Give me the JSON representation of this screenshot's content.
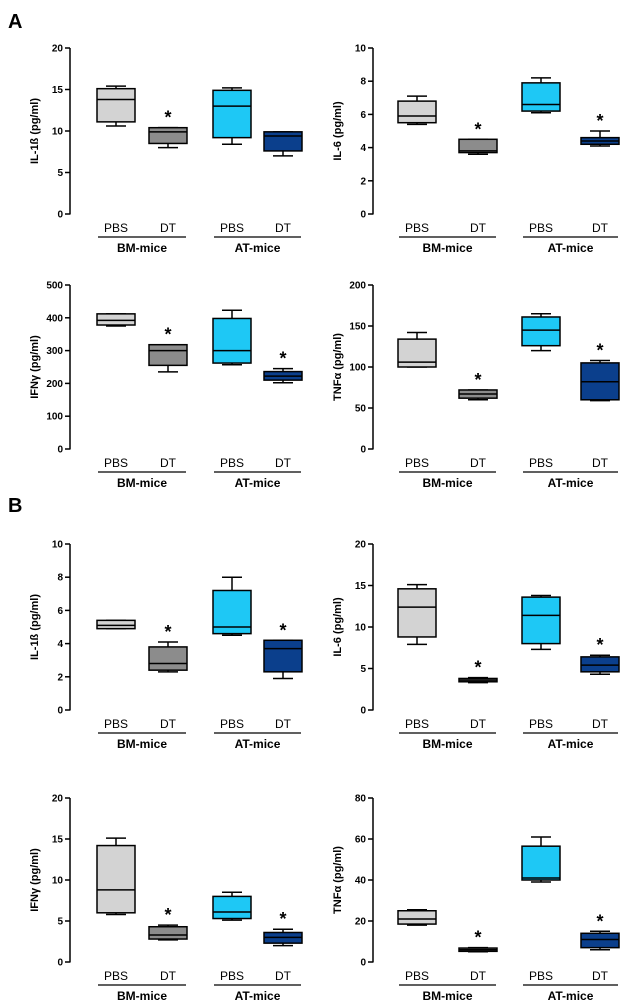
{
  "panels": {
    "A": "A",
    "B": "B"
  },
  "colors": {
    "BM-mice PBS": "#d3d3d3",
    "BM-mice DT": "#8c8c8c",
    "AT-mice PBS": "#1ec8f5",
    "AT-mice DT": "#0b3f8c"
  },
  "chart_data": [
    {
      "panel": "A",
      "type": "box",
      "ylabel": "IL-1ß (pg/ml)",
      "ylim": [
        0,
        20
      ],
      "yticks": [
        0,
        5,
        10,
        15,
        20
      ],
      "categories": [
        "PBS",
        "DT",
        "PBS",
        "DT"
      ],
      "groups": [
        "BM-mice",
        "AT-mice"
      ],
      "boxes": [
        {
          "min": 10.6,
          "q1": 11.1,
          "median": 13.8,
          "q3": 15.1,
          "max": 15.4,
          "star": false
        },
        {
          "min": 8.0,
          "q1": 8.5,
          "median": 9.9,
          "q3": 10.4,
          "max": 10.4,
          "star": true
        },
        {
          "min": 8.4,
          "q1": 9.2,
          "median": 13.0,
          "q3": 14.9,
          "max": 15.2,
          "star": false
        },
        {
          "min": 7.0,
          "q1": 7.6,
          "median": 9.4,
          "q3": 9.9,
          "max": 9.9,
          "star": false
        }
      ]
    },
    {
      "panel": "A",
      "type": "box",
      "ylabel": "IL-6 (pg/ml)",
      "ylim": [
        0,
        10
      ],
      "yticks": [
        0,
        2,
        4,
        6,
        8,
        10
      ],
      "categories": [
        "PBS",
        "DT",
        "PBS",
        "DT"
      ],
      "groups": [
        "BM-mice",
        "AT-mice"
      ],
      "boxes": [
        {
          "min": 5.4,
          "q1": 5.5,
          "median": 5.9,
          "q3": 6.8,
          "max": 7.1,
          "star": false
        },
        {
          "min": 3.6,
          "q1": 3.7,
          "median": 3.8,
          "q3": 4.5,
          "max": 4.5,
          "star": true
        },
        {
          "min": 6.1,
          "q1": 6.2,
          "median": 6.6,
          "q3": 7.9,
          "max": 8.2,
          "star": false
        },
        {
          "min": 4.1,
          "q1": 4.2,
          "median": 4.4,
          "q3": 4.6,
          "max": 5.0,
          "star": true
        }
      ]
    },
    {
      "panel": "A",
      "type": "box",
      "ylabel": "IFNγ (pg/ml)",
      "ylim": [
        0,
        500
      ],
      "yticks": [
        0,
        100,
        200,
        300,
        400,
        500
      ],
      "categories": [
        "PBS",
        "DT",
        "PBS",
        "DT"
      ],
      "groups": [
        "BM-mice",
        "AT-mice"
      ],
      "boxes": [
        {
          "min": 375,
          "q1": 378,
          "median": 392,
          "q3": 412,
          "max": 412,
          "star": false
        },
        {
          "min": 235,
          "q1": 255,
          "median": 300,
          "q3": 318,
          "max": 318,
          "star": true
        },
        {
          "min": 257,
          "q1": 262,
          "median": 300,
          "q3": 398,
          "max": 423,
          "star": false
        },
        {
          "min": 202,
          "q1": 210,
          "median": 222,
          "q3": 236,
          "max": 245,
          "star": true
        }
      ]
    },
    {
      "panel": "A",
      "type": "box",
      "ylabel": "TNFα (pg/ml)",
      "ylim": [
        0,
        200
      ],
      "yticks": [
        0,
        50,
        100,
        150,
        200
      ],
      "categories": [
        "PBS",
        "DT",
        "PBS",
        "DT"
      ],
      "groups": [
        "BM-mice",
        "AT-mice"
      ],
      "boxes": [
        {
          "min": 100,
          "q1": 100,
          "median": 106,
          "q3": 134,
          "max": 142,
          "star": false
        },
        {
          "min": 60,
          "q1": 62,
          "median": 67,
          "q3": 72,
          "max": 72,
          "star": true
        },
        {
          "min": 120,
          "q1": 126,
          "median": 145,
          "q3": 161,
          "max": 165,
          "star": false
        },
        {
          "min": 59,
          "q1": 60,
          "median": 82,
          "q3": 105,
          "max": 108,
          "star": true
        }
      ]
    },
    {
      "panel": "B",
      "type": "box",
      "ylabel": "IL-1ß (pg/ml)",
      "ylim": [
        0,
        10
      ],
      "yticks": [
        0,
        2,
        4,
        6,
        8,
        10
      ],
      "categories": [
        "PBS",
        "DT",
        "PBS",
        "DT"
      ],
      "groups": [
        "BM-mice",
        "AT-mice"
      ],
      "boxes": [
        {
          "min": 4.9,
          "q1": 4.9,
          "median": 5.1,
          "q3": 5.4,
          "max": 5.4,
          "star": false
        },
        {
          "min": 2.3,
          "q1": 2.4,
          "median": 2.8,
          "q3": 3.8,
          "max": 4.1,
          "star": true
        },
        {
          "min": 4.5,
          "q1": 4.6,
          "median": 5.0,
          "q3": 7.2,
          "max": 8.0,
          "star": false
        },
        {
          "min": 1.9,
          "q1": 2.3,
          "median": 3.7,
          "q3": 4.2,
          "max": 4.2,
          "star": true
        }
      ]
    },
    {
      "panel": "B",
      "type": "box",
      "ylabel": "IL-6 (pg/ml)",
      "ylim": [
        0,
        20
      ],
      "yticks": [
        0,
        5,
        10,
        15,
        20
      ],
      "categories": [
        "PBS",
        "DT",
        "PBS",
        "DT"
      ],
      "groups": [
        "BM-mice",
        "AT-mice"
      ],
      "boxes": [
        {
          "min": 7.9,
          "q1": 8.8,
          "median": 12.4,
          "q3": 14.6,
          "max": 15.1,
          "star": false
        },
        {
          "min": 3.3,
          "q1": 3.4,
          "median": 3.6,
          "q3": 3.8,
          "max": 3.9,
          "star": true
        },
        {
          "min": 7.3,
          "q1": 8.0,
          "median": 11.4,
          "q3": 13.6,
          "max": 13.8,
          "star": false
        },
        {
          "min": 4.3,
          "q1": 4.6,
          "median": 5.4,
          "q3": 6.4,
          "max": 6.6,
          "star": true
        }
      ]
    },
    {
      "panel": "B",
      "type": "box",
      "ylabel": "IFNγ (pg/ml)",
      "ylim": [
        0,
        20
      ],
      "yticks": [
        0,
        5,
        10,
        15,
        20
      ],
      "categories": [
        "PBS",
        "DT",
        "PBS",
        "DT"
      ],
      "groups": [
        "BM-mice",
        "AT-mice"
      ],
      "boxes": [
        {
          "min": 5.8,
          "q1": 6.0,
          "median": 8.8,
          "q3": 14.2,
          "max": 15.1,
          "star": false
        },
        {
          "min": 2.7,
          "q1": 2.8,
          "median": 3.3,
          "q3": 4.3,
          "max": 4.5,
          "star": true
        },
        {
          "min": 5.1,
          "q1": 5.3,
          "median": 6.1,
          "q3": 8.0,
          "max": 8.5,
          "star": false
        },
        {
          "min": 2.0,
          "q1": 2.3,
          "median": 3.0,
          "q3": 3.6,
          "max": 4.0,
          "star": true
        }
      ]
    },
    {
      "panel": "B",
      "type": "box",
      "ylabel": "TNFα (pg/ml)",
      "ylim": [
        0,
        80
      ],
      "yticks": [
        0,
        20,
        40,
        60,
        80
      ],
      "categories": [
        "PBS",
        "DT",
        "PBS",
        "DT"
      ],
      "groups": [
        "BM-mice",
        "AT-mice"
      ],
      "boxes": [
        {
          "min": 18,
          "q1": 18.5,
          "median": 21,
          "q3": 25,
          "max": 25.5,
          "star": false
        },
        {
          "min": 5,
          "q1": 5.2,
          "median": 6,
          "q3": 6.8,
          "max": 7,
          "star": true
        },
        {
          "min": 39,
          "q1": 40,
          "median": 41,
          "q3": 56.5,
          "max": 61,
          "star": false
        },
        {
          "min": 6,
          "q1": 7,
          "median": 11,
          "q3": 14,
          "max": 15,
          "star": true
        }
      ]
    }
  ]
}
